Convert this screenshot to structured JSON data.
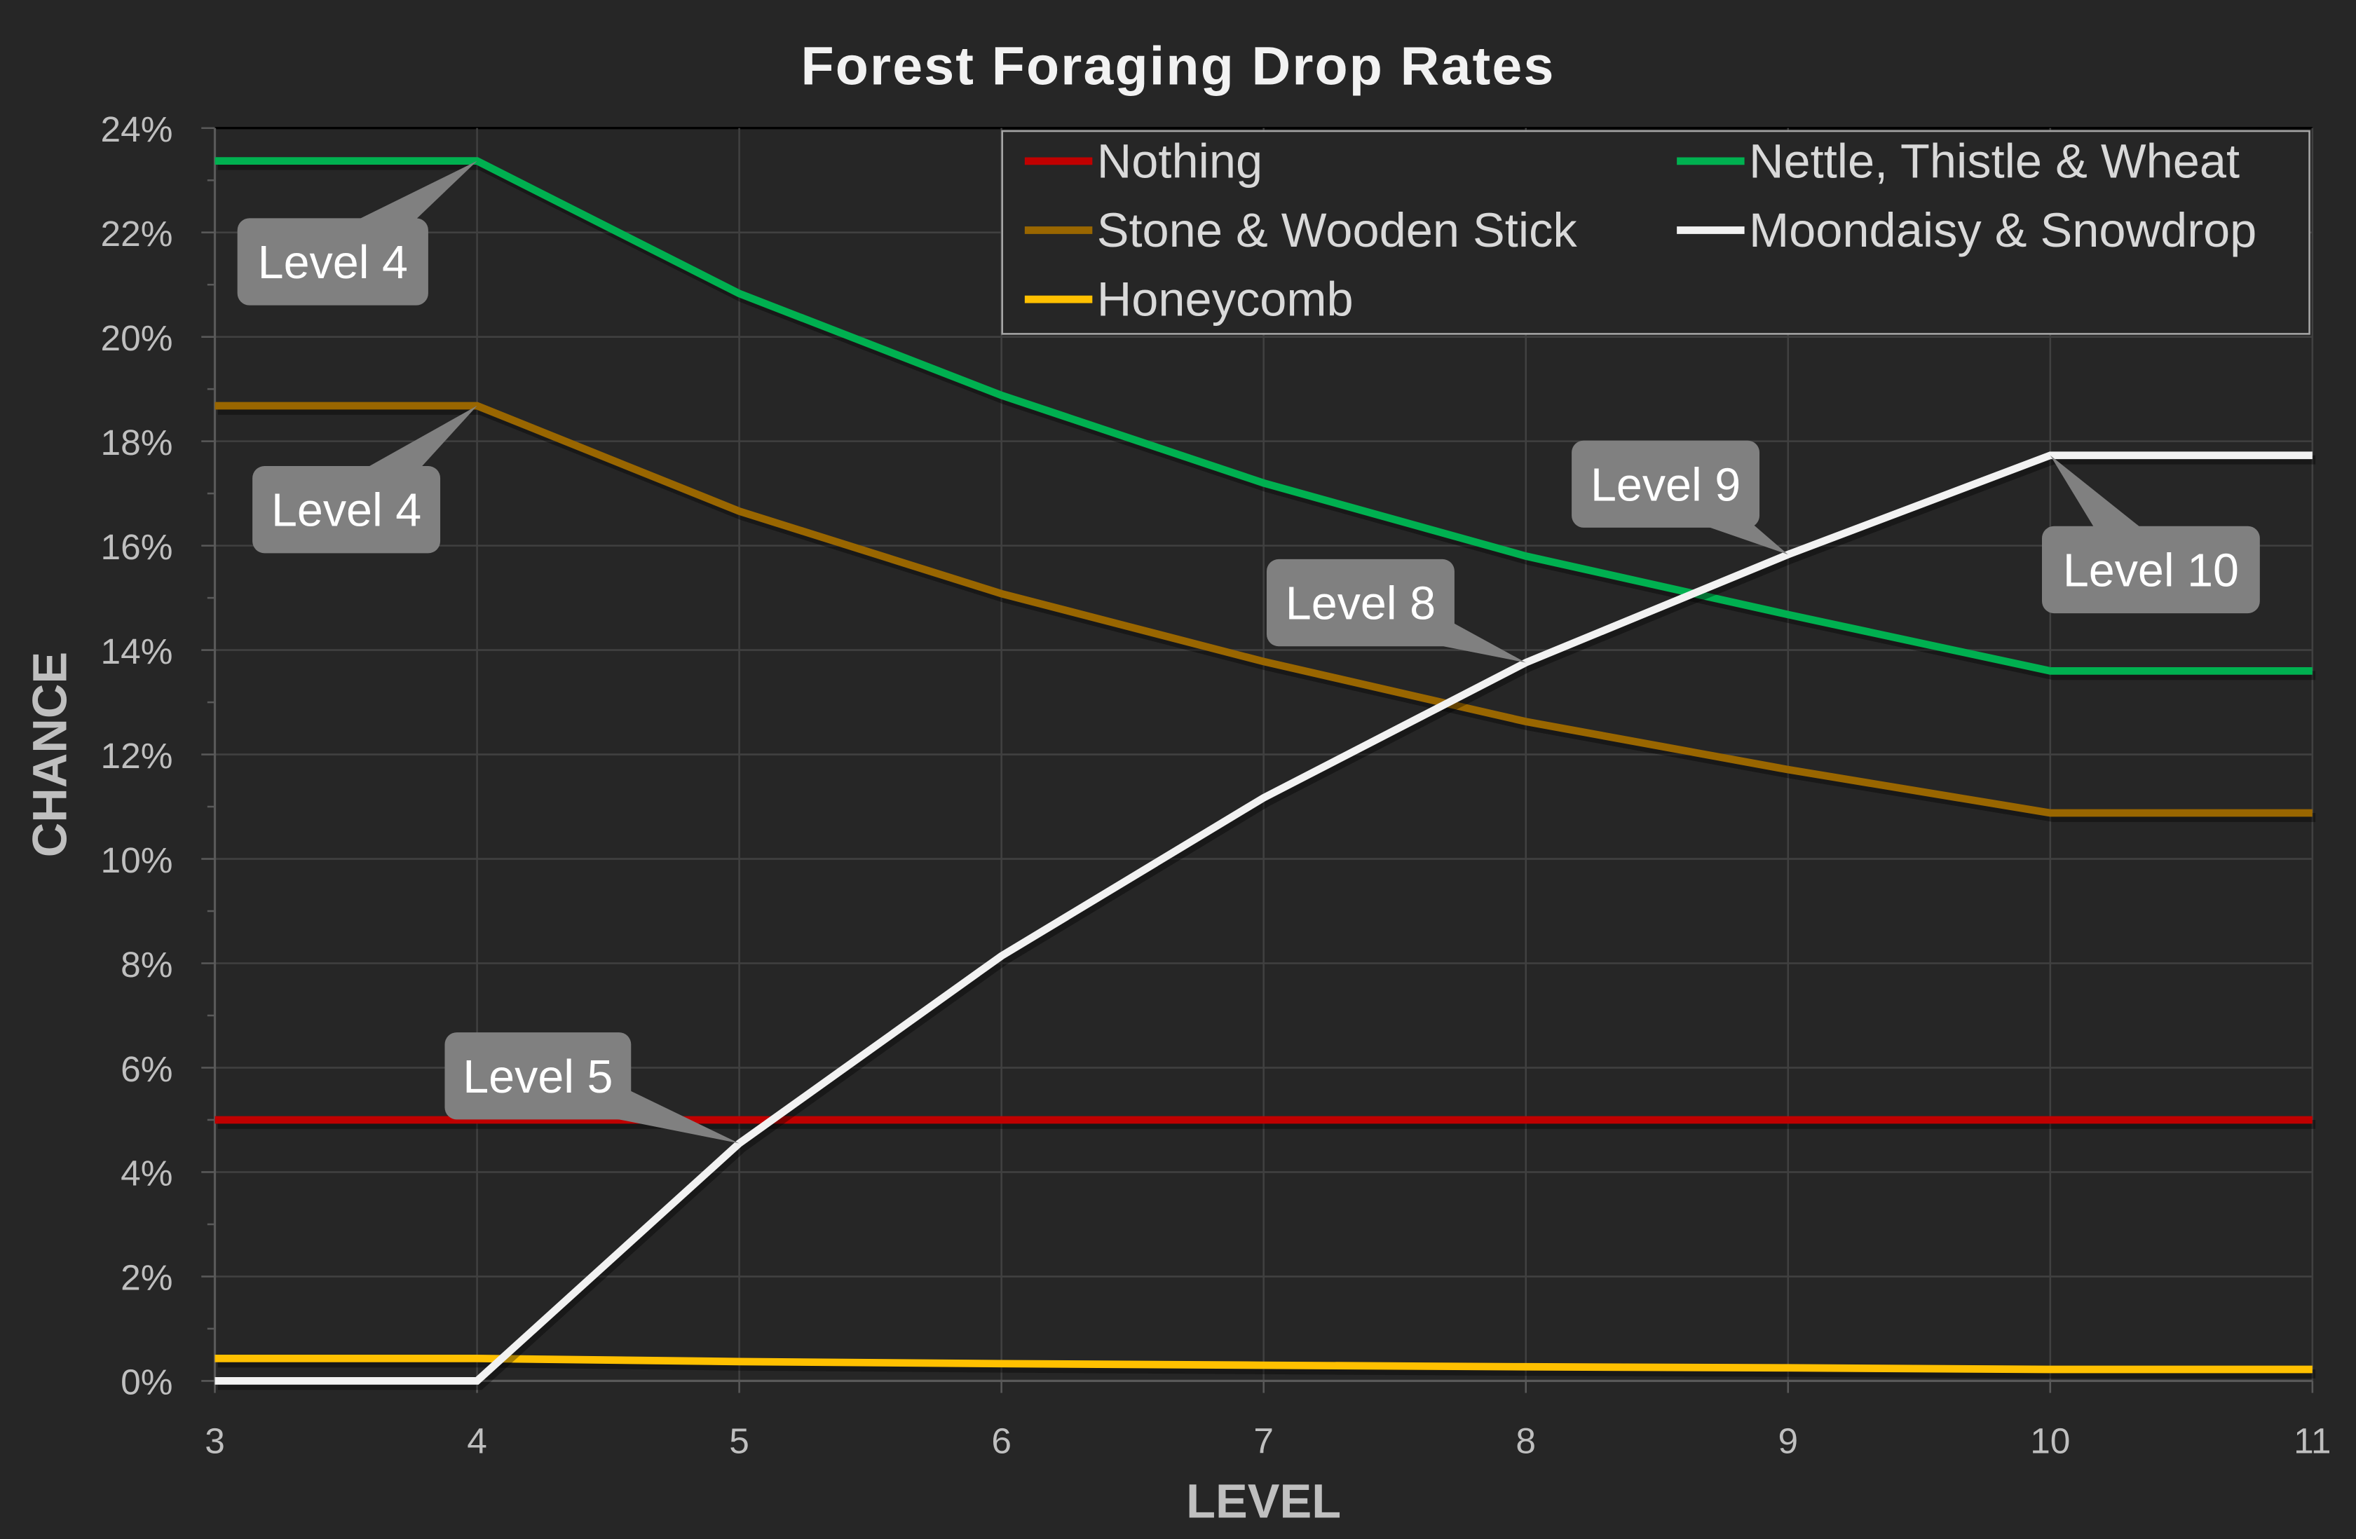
{
  "chart_data": {
    "type": "line",
    "title": "Forest Foraging Drop Rates",
    "xlabel": "LEVEL",
    "ylabel": "CHANCE",
    "x": [
      3,
      4,
      5,
      6,
      7,
      8,
      9,
      10,
      11
    ],
    "xlim": [
      3,
      11
    ],
    "ylim": [
      0,
      24
    ],
    "y_tick_labels": [
      "0%",
      "2%",
      "4%",
      "6%",
      "8%",
      "10%",
      "12%",
      "14%",
      "16%",
      "18%",
      "20%",
      "22%",
      "24%"
    ],
    "x_tick_labels": [
      "3",
      "4",
      "5",
      "6",
      "7",
      "8",
      "9",
      "10",
      "11"
    ],
    "grid": true,
    "legend_position": "top-right",
    "background": "#262626",
    "series": [
      {
        "name": "Nothing",
        "color": "#C00000",
        "values": [
          5.0,
          5.0,
          5.0,
          5.0,
          5.0,
          5.0,
          5.0,
          5.0,
          5.0
        ]
      },
      {
        "name": "Nettle, Thistle & Wheat",
        "color": "#00B050",
        "values": [
          23.37,
          23.37,
          20.83,
          18.88,
          17.2,
          15.8,
          14.68,
          13.6,
          13.6
        ]
      },
      {
        "name": "Stone & Wooden Stick",
        "color": "#996600",
        "values": [
          18.68,
          18.68,
          16.66,
          15.08,
          13.78,
          12.63,
          11.71,
          10.88,
          10.88
        ]
      },
      {
        "name": "Moondaisy & Snowdrop",
        "color": "#F2F2F2",
        "values": [
          0.0,
          0.0,
          4.55,
          8.14,
          11.17,
          13.76,
          15.83,
          17.73,
          17.73
        ]
      },
      {
        "name": "Honeycomb",
        "color": "#FFC000",
        "values": [
          0.43,
          0.43,
          0.37,
          0.33,
          0.3,
          0.27,
          0.25,
          0.22,
          0.22
        ]
      }
    ],
    "annotations": [
      {
        "text": "Level 4",
        "series": "Nettle, Thistle & Wheat",
        "x": 4
      },
      {
        "text": "Level 4",
        "series": "Stone & Wooden Stick",
        "x": 4
      },
      {
        "text": "Level 5",
        "series": "Moondaisy & Snowdrop",
        "x": 5
      },
      {
        "text": "Level 8",
        "series": "Moondaisy & Snowdrop",
        "x": 8
      },
      {
        "text": "Level 9",
        "series": "Moondaisy & Snowdrop",
        "x": 9
      },
      {
        "text": "Level 10",
        "series": "Moondaisy & Snowdrop",
        "x": 10
      }
    ]
  }
}
